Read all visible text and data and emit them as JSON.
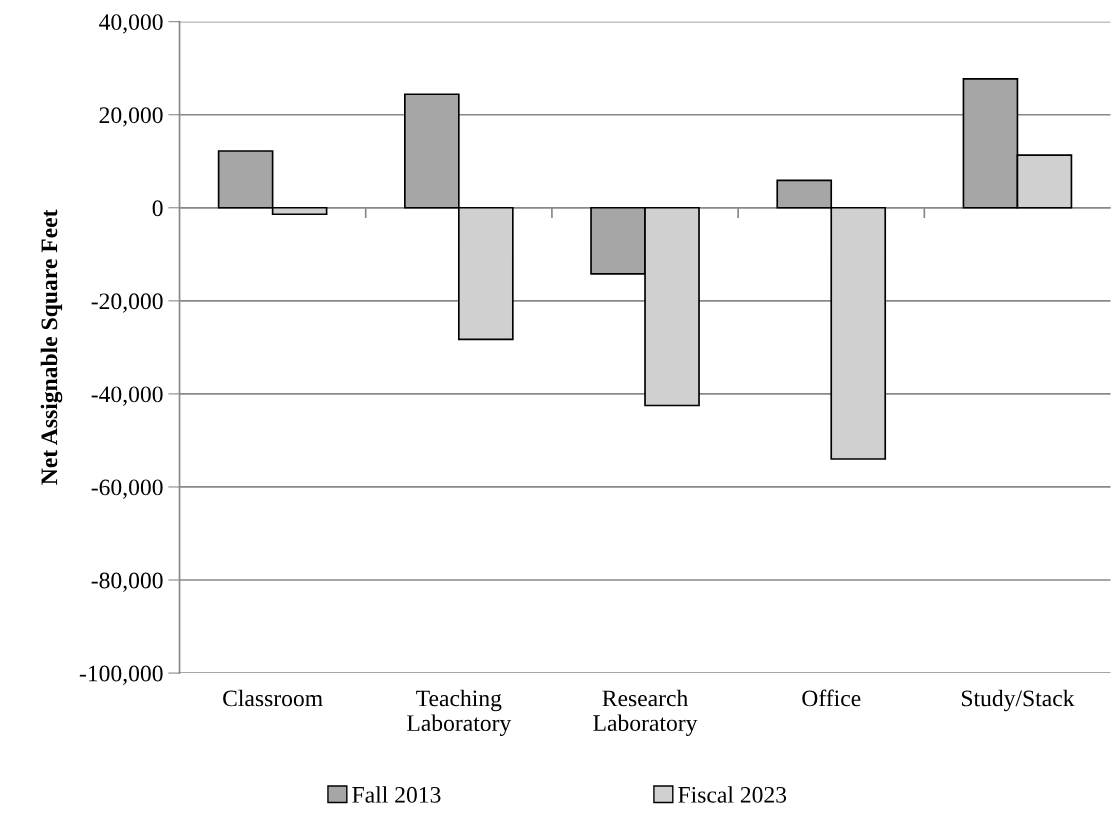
{
  "chart_data": {
    "type": "bar",
    "ylabel": "Net Assignable Square Feet",
    "categories": [
      "Classroom",
      "Teaching\nLaboratory",
      "Research\nLaboratory",
      "Office",
      "Study/Stack"
    ],
    "series": [
      {
        "name": "Fall 2013",
        "color": "#a6a6a6",
        "values": [
          12200,
          24400,
          -14200,
          5900,
          27700
        ]
      },
      {
        "name": "Fiscal 2023",
        "color": "#d0d0d0",
        "values": [
          -1400,
          -28300,
          -42500,
          -54000,
          11300
        ]
      }
    ],
    "ylim": [
      -100000,
      40000
    ],
    "yticks": [
      {
        "value": -100000,
        "label": "-100,000"
      },
      {
        "value": -80000,
        "label": "-80,000"
      },
      {
        "value": -60000,
        "label": "-60,000"
      },
      {
        "value": -40000,
        "label": "-40,000"
      },
      {
        "value": -20000,
        "label": "-20,000"
      },
      0,
      {
        "value": 20000,
        "label": "20,000"
      },
      {
        "value": 40000,
        "label": "40,000"
      }
    ],
    "grid": "y",
    "legend": "bottom"
  }
}
